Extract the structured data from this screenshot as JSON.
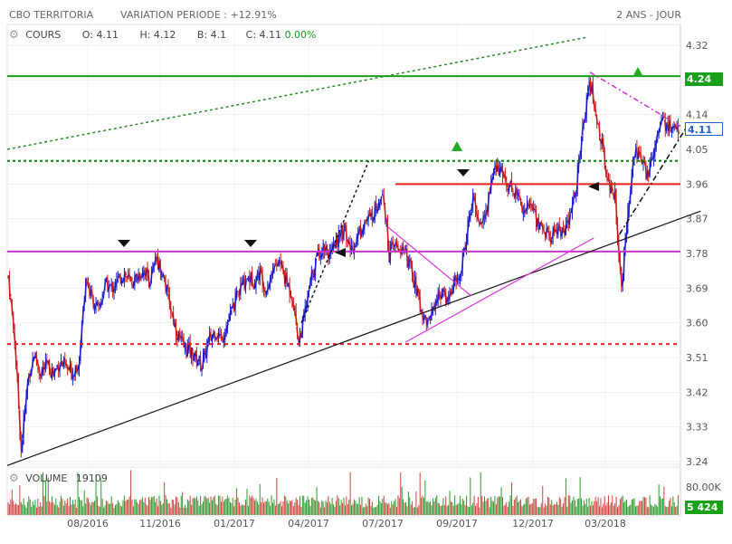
{
  "header": {
    "instrument": "CBO TERRITORIA",
    "variation": "VARIATION PERIODE : +12.91%",
    "period": "2 ANS - JOUR"
  },
  "legend": {
    "label": "COURS",
    "open": "O: 4.11",
    "high": "H: 4.12",
    "low": "B: 4.1",
    "close": "C: 4.11",
    "change": "0.00%"
  },
  "volume_legend": {
    "label": "VOLUME",
    "value": "19109"
  },
  "chart_data": {
    "type": "candlestick",
    "price_axis": {
      "ticks": [
        4.32,
        4.23,
        4.14,
        4.05,
        3.96,
        3.87,
        3.78,
        3.69,
        3.6,
        3.51,
        3.42,
        3.33,
        3.24
      ],
      "tick_labels": [
        "4.32",
        "",
        "4.14",
        "4.05",
        "3.96",
        "3.87",
        "3.78",
        "3.69",
        "3.60",
        "3.51",
        "3.42",
        "3.33",
        "3.24"
      ],
      "range": [
        3.24,
        4.32
      ],
      "resistance_label": "4.24",
      "last_label": "4.11",
      "resistance_color": "#2a8a2a",
      "last_color": "#2060d0"
    },
    "volume_axis": {
      "tick_label": "80.00K",
      "last_label": "5 424",
      "last_color": "#2a8a2a"
    },
    "x_axis": {
      "labels": [
        "08/2016",
        "11/2016",
        "01/2017",
        "04/2017",
        "07/2017",
        "09/2017",
        "12/2017",
        "03/2018"
      ],
      "range": [
        "2016-03-14",
        "2018-03-14"
      ]
    },
    "price_path": [
      [
        "2016-03-15",
        3.72
      ],
      [
        "2016-03-22",
        3.55
      ],
      [
        "2016-03-29",
        3.27
      ],
      [
        "2016-04-05",
        3.45
      ],
      [
        "2016-04-12",
        3.52
      ],
      [
        "2016-04-19",
        3.47
      ],
      [
        "2016-04-26",
        3.49
      ],
      [
        "2016-05-03",
        3.47
      ],
      [
        "2016-05-10",
        3.5
      ],
      [
        "2016-05-17",
        3.48
      ],
      [
        "2016-05-24",
        3.47
      ],
      [
        "2016-05-31",
        3.51
      ],
      [
        "2016-06-07",
        3.72
      ],
      [
        "2016-06-14",
        3.66
      ],
      [
        "2016-06-21",
        3.63
      ],
      [
        "2016-06-28",
        3.7
      ],
      [
        "2016-07-05",
        3.69
      ],
      [
        "2016-07-12",
        3.71
      ],
      [
        "2016-07-19",
        3.73
      ],
      [
        "2016-07-26",
        3.7
      ],
      [
        "2016-08-02",
        3.72
      ],
      [
        "2016-08-09",
        3.74
      ],
      [
        "2016-08-16",
        3.71
      ],
      [
        "2016-08-23",
        3.77
      ],
      [
        "2016-08-30",
        3.72
      ],
      [
        "2016-09-06",
        3.65
      ],
      [
        "2016-09-13",
        3.58
      ],
      [
        "2016-09-20",
        3.54
      ],
      [
        "2016-09-27",
        3.53
      ],
      [
        "2016-10-04",
        3.51
      ],
      [
        "2016-10-11",
        3.49
      ],
      [
        "2016-10-18",
        3.55
      ],
      [
        "2016-10-25",
        3.58
      ],
      [
        "2016-11-01",
        3.56
      ],
      [
        "2016-11-08",
        3.6
      ],
      [
        "2016-11-15",
        3.65
      ],
      [
        "2016-11-22",
        3.69
      ],
      [
        "2016-11-29",
        3.72
      ],
      [
        "2016-12-06",
        3.71
      ],
      [
        "2016-12-13",
        3.73
      ],
      [
        "2016-12-20",
        3.69
      ],
      [
        "2016-12-27",
        3.74
      ],
      [
        "2017-01-03",
        3.76
      ],
      [
        "2017-01-10",
        3.71
      ],
      [
        "2017-01-17",
        3.67
      ],
      [
        "2017-01-24",
        3.55
      ],
      [
        "2017-01-31",
        3.63
      ],
      [
        "2017-02-07",
        3.72
      ],
      [
        "2017-02-14",
        3.78
      ],
      [
        "2017-02-21",
        3.8
      ],
      [
        "2017-02-28",
        3.77
      ],
      [
        "2017-03-07",
        3.82
      ],
      [
        "2017-03-14",
        3.84
      ],
      [
        "2017-03-21",
        3.79
      ],
      [
        "2017-03-28",
        3.82
      ],
      [
        "2017-04-04",
        3.86
      ],
      [
        "2017-04-11",
        3.87
      ],
      [
        "2017-04-18",
        3.9
      ],
      [
        "2017-04-25",
        3.95
      ],
      [
        "2017-05-02",
        3.78
      ],
      [
        "2017-05-09",
        3.8
      ],
      [
        "2017-05-16",
        3.79
      ],
      [
        "2017-05-23",
        3.76
      ],
      [
        "2017-05-30",
        3.7
      ],
      [
        "2017-06-06",
        3.63
      ],
      [
        "2017-06-13",
        3.6
      ],
      [
        "2017-06-20",
        3.65
      ],
      [
        "2017-06-27",
        3.68
      ],
      [
        "2017-07-04",
        3.66
      ],
      [
        "2017-07-11",
        3.7
      ],
      [
        "2017-07-18",
        3.72
      ],
      [
        "2017-07-25",
        3.83
      ],
      [
        "2017-08-01",
        3.92
      ],
      [
        "2017-08-08",
        3.86
      ],
      [
        "2017-08-15",
        3.88
      ],
      [
        "2017-08-22",
        3.99
      ],
      [
        "2017-08-29",
        4.0
      ],
      [
        "2017-09-05",
        3.97
      ],
      [
        "2017-09-12",
        3.95
      ],
      [
        "2017-09-19",
        3.93
      ],
      [
        "2017-09-26",
        3.89
      ],
      [
        "2017-10-03",
        3.91
      ],
      [
        "2017-10-10",
        3.86
      ],
      [
        "2017-10-17",
        3.84
      ],
      [
        "2017-10-24",
        3.82
      ],
      [
        "2017-10-31",
        3.85
      ],
      [
        "2017-11-07",
        3.83
      ],
      [
        "2017-11-14",
        3.87
      ],
      [
        "2017-11-21",
        3.96
      ],
      [
        "2017-11-28",
        4.1
      ],
      [
        "2017-12-05",
        4.24
      ],
      [
        "2017-12-12",
        4.14
      ],
      [
        "2017-12-19",
        4.06
      ],
      [
        "2017-12-26",
        3.96
      ],
      [
        "2018-01-02",
        3.93
      ],
      [
        "2018-01-09",
        3.68
      ],
      [
        "2018-01-16",
        3.9
      ],
      [
        "2018-01-23",
        4.05
      ],
      [
        "2018-01-30",
        4.02
      ],
      [
        "2018-02-06",
        3.98
      ],
      [
        "2018-02-13",
        4.05
      ],
      [
        "2018-02-20",
        4.13
      ],
      [
        "2018-02-27",
        4.11
      ],
      [
        "2018-03-06",
        4.1
      ],
      [
        "2018-03-13",
        4.11
      ]
    ],
    "horizontal_lines": [
      {
        "value": 4.24,
        "color": "#1aa01a",
        "style": "solid"
      },
      {
        "value": 4.02,
        "color": "#0a7a0a",
        "style": "dotted"
      },
      {
        "value": 3.96,
        "color": "#e02020",
        "style": "solid",
        "from": "2017-05-09"
      },
      {
        "value": 3.785,
        "color": "#cc33cc",
        "style": "solid"
      },
      {
        "value": 3.545,
        "color": "#dd2020",
        "style": "dashed"
      }
    ],
    "trend_lines": [
      {
        "from": [
          "2016-03-14",
          4.05
        ],
        "to": [
          "2017-12-01",
          4.34
        ],
        "color": "#2a8a2a",
        "style": "dotted"
      },
      {
        "from": [
          "2016-03-14",
          3.23
        ],
        "to": [
          "2018-04-05",
          3.89
        ],
        "color": "#111111",
        "style": "solid"
      },
      {
        "from": [
          "2017-01-27",
          3.6
        ],
        "to": [
          "2017-04-10",
          4.02
        ],
        "color": "#111111",
        "style": "dotted"
      },
      {
        "from": [
          "2017-04-30",
          3.85
        ],
        "to": [
          "2017-07-30",
          3.67
        ],
        "color": "#dd33dd",
        "style": "solid"
      },
      {
        "from": [
          "2017-05-20",
          3.55
        ],
        "to": [
          "2017-12-10",
          3.82
        ],
        "color": "#dd33dd",
        "style": "solid"
      },
      {
        "from": [
          "2017-12-06",
          4.25
        ],
        "to": [
          "2018-03-14",
          4.11
        ],
        "color": "#cc33cc",
        "style": "dashdot"
      },
      {
        "from": [
          "2018-01-07",
          3.83
        ],
        "to": [
          "2018-03-24",
          4.12
        ],
        "color": "#111111",
        "style": "dashdot"
      }
    ]
  }
}
